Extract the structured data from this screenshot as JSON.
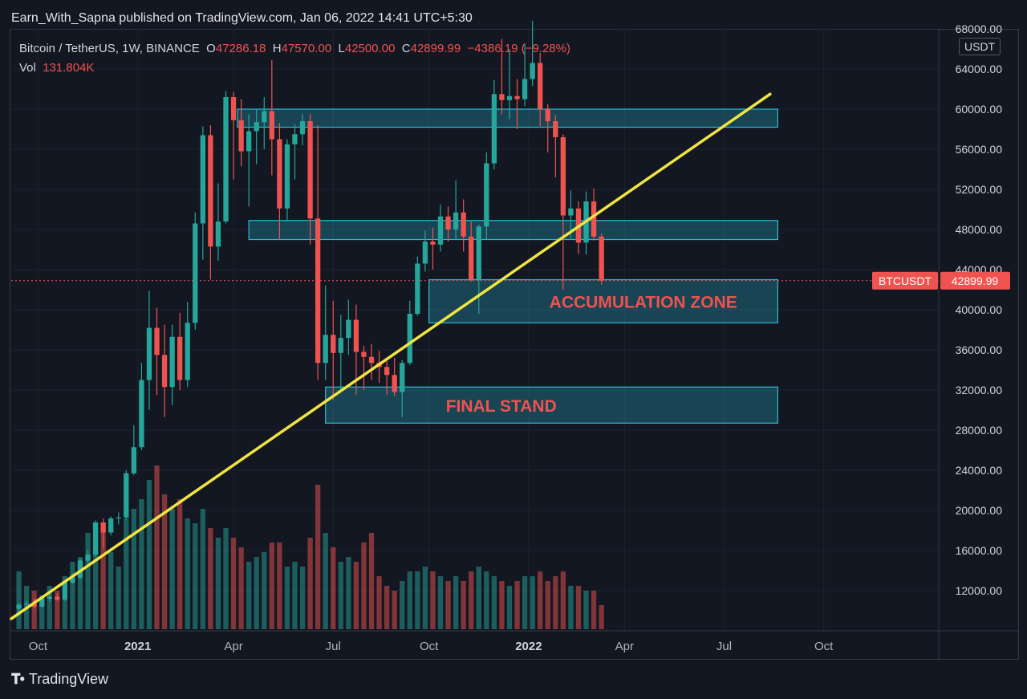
{
  "header": {
    "publish_line": "Earn_With_Sapna published on TradingView.com, Jan 06, 2022 14:41 UTC+5:30"
  },
  "legend": {
    "symbol": "Bitcoin / TetherUS, 1W, BINANCE",
    "o_label": "O",
    "o_value": "47286.18",
    "h_label": "H",
    "h_value": "47570.00",
    "l_label": "L",
    "l_value": "42500.00",
    "c_label": "C",
    "c_value": "42899.99",
    "change": "−4386.19 (−9.28%)",
    "vol_label": "Vol",
    "vol_value": "131.804K"
  },
  "currency_badge": "USDT",
  "price_tags": {
    "symbol": "BTCUSDT",
    "last": "42899.99"
  },
  "zones": [
    {
      "label": "",
      "low": 58200,
      "high": 60000,
      "from_week": 28.5,
      "to_week": 99
    },
    {
      "label": "",
      "low": 47000,
      "high": 48900,
      "from_week": 30,
      "to_week": 99
    },
    {
      "label": "ACCUMULATION ZONE",
      "low": 38700,
      "high": 43000,
      "from_week": 53.5,
      "to_week": 99
    },
    {
      "label": "FINAL STAND",
      "low": 28700,
      "high": 32300,
      "from_week": 40,
      "to_week": 99
    }
  ],
  "footer": {
    "brand": "TradingView"
  },
  "colors": {
    "up": "#26a69a",
    "down": "#ef5350",
    "zone": "#2bbcd4",
    "trend": "#f0e442",
    "bg": "#131722"
  },
  "chart_data": {
    "type": "candlestick",
    "interval": "1W",
    "y_axis": {
      "ticks": [
        12000,
        16000,
        20000,
        24000,
        28000,
        32000,
        36000,
        40000,
        44000,
        48000,
        52000,
        56000,
        60000,
        64000,
        68000
      ],
      "tick_labels": [
        "12000.00",
        "16000.00",
        "20000.00",
        "24000.00",
        "28000.00",
        "32000.00",
        "36000.00",
        "40000.00",
        "44000.00",
        "48000.00",
        "52000.00",
        "56000.00",
        "60000.00",
        "64000.00",
        "68000.00"
      ],
      "range": [
        8000,
        68000
      ]
    },
    "x_axis": {
      "ticks": [
        {
          "label": "Oct",
          "week": 2.5,
          "bold": false
        },
        {
          "label": "2021",
          "week": 15.5,
          "bold": true
        },
        {
          "label": "Apr",
          "week": 28,
          "bold": false
        },
        {
          "label": "Jul",
          "week": 41,
          "bold": false
        },
        {
          "label": "Oct",
          "week": 53.5,
          "bold": false
        },
        {
          "label": "2022",
          "week": 66.5,
          "bold": true
        },
        {
          "label": "Apr",
          "week": 79,
          "bold": false
        },
        {
          "label": "Jul",
          "week": 92,
          "bold": false
        },
        {
          "label": "Oct",
          "week": 105,
          "bold": false
        }
      ],
      "range": [
        -1,
        120
      ]
    },
    "trendline": {
      "from": {
        "week": -1,
        "price": 9200
      },
      "to": {
        "week": 98,
        "price": 61500
      }
    },
    "last_price": 42900,
    "candles": [
      {
        "o": 10200,
        "h": 10800,
        "l": 9800,
        "c": 10600,
        "v": 12
      },
      {
        "o": 10600,
        "h": 11000,
        "l": 10300,
        "c": 10700,
        "v": 9
      },
      {
        "o": 10700,
        "h": 11200,
        "l": 10200,
        "c": 10400,
        "v": 8
      },
      {
        "o": 10400,
        "h": 11400,
        "l": 10300,
        "c": 11200,
        "v": 7
      },
      {
        "o": 11200,
        "h": 11700,
        "l": 10900,
        "c": 11400,
        "v": 9
      },
      {
        "o": 11400,
        "h": 11700,
        "l": 11000,
        "c": 11100,
        "v": 8
      },
      {
        "o": 11100,
        "h": 13000,
        "l": 11000,
        "c": 12800,
        "v": 11
      },
      {
        "o": 12800,
        "h": 13700,
        "l": 12700,
        "c": 13300,
        "v": 14
      },
      {
        "o": 13300,
        "h": 15200,
        "l": 13100,
        "c": 15000,
        "v": 15
      },
      {
        "o": 15000,
        "h": 16000,
        "l": 14800,
        "c": 15600,
        "v": 20
      },
      {
        "o": 15600,
        "h": 19000,
        "l": 15400,
        "c": 18800,
        "v": 21
      },
      {
        "o": 18800,
        "h": 19200,
        "l": 16200,
        "c": 17800,
        "v": 22
      },
      {
        "o": 17800,
        "h": 19400,
        "l": 17500,
        "c": 19200,
        "v": 16
      },
      {
        "o": 19200,
        "h": 19800,
        "l": 18600,
        "c": 19300,
        "v": 13
      },
      {
        "o": 19300,
        "h": 24000,
        "l": 19100,
        "c": 23700,
        "v": 23
      },
      {
        "o": 23700,
        "h": 28500,
        "l": 23500,
        "c": 26300,
        "v": 25
      },
      {
        "o": 26300,
        "h": 34700,
        "l": 26000,
        "c": 33000,
        "v": 27
      },
      {
        "o": 33000,
        "h": 41900,
        "l": 30000,
        "c": 38200,
        "v": 31
      },
      {
        "o": 38200,
        "h": 40200,
        "l": 31500,
        "c": 35500,
        "v": 34
      },
      {
        "o": 35500,
        "h": 38500,
        "l": 29300,
        "c": 32300,
        "v": 28
      },
      {
        "o": 32300,
        "h": 38500,
        "l": 30500,
        "c": 37300,
        "v": 25
      },
      {
        "o": 37300,
        "h": 39700,
        "l": 32000,
        "c": 33000,
        "v": 27
      },
      {
        "o": 33000,
        "h": 40800,
        "l": 32300,
        "c": 38700,
        "v": 23
      },
      {
        "o": 38700,
        "h": 49700,
        "l": 38000,
        "c": 48600,
        "v": 22
      },
      {
        "o": 48600,
        "h": 58300,
        "l": 45000,
        "c": 57400,
        "v": 25
      },
      {
        "o": 57400,
        "h": 58400,
        "l": 43000,
        "c": 46300,
        "v": 21
      },
      {
        "o": 46300,
        "h": 52600,
        "l": 44900,
        "c": 48800,
        "v": 19
      },
      {
        "o": 48800,
        "h": 61800,
        "l": 48600,
        "c": 61200,
        "v": 21
      },
      {
        "o": 61200,
        "h": 61700,
        "l": 53000,
        "c": 58900,
        "v": 19
      },
      {
        "o": 58900,
        "h": 61000,
        "l": 54300,
        "c": 55800,
        "v": 17
      },
      {
        "o": 55800,
        "h": 59500,
        "l": 50300,
        "c": 57800,
        "v": 14
      },
      {
        "o": 57800,
        "h": 60000,
        "l": 54500,
        "c": 58700,
        "v": 15
      },
      {
        "o": 58700,
        "h": 61200,
        "l": 56000,
        "c": 59800,
        "v": 16
      },
      {
        "o": 59800,
        "h": 64900,
        "l": 53400,
        "c": 57000,
        "v": 18
      },
      {
        "o": 57000,
        "h": 58600,
        "l": 47000,
        "c": 50100,
        "v": 18
      },
      {
        "o": 50100,
        "h": 57000,
        "l": 48800,
        "c": 56500,
        "v": 13
      },
      {
        "o": 56500,
        "h": 58500,
        "l": 53000,
        "c": 57500,
        "v": 14
      },
      {
        "o": 57500,
        "h": 59500,
        "l": 56400,
        "c": 58800,
        "v": 13
      },
      {
        "o": 58800,
        "h": 59500,
        "l": 46500,
        "c": 49100,
        "v": 19
      },
      {
        "o": 49100,
        "h": 58400,
        "l": 33000,
        "c": 34700,
        "v": 30
      },
      {
        "o": 34700,
        "h": 42400,
        "l": 33000,
        "c": 37500,
        "v": 20
      },
      {
        "o": 37500,
        "h": 40900,
        "l": 31000,
        "c": 35700,
        "v": 17
      },
      {
        "o": 35700,
        "h": 39500,
        "l": 32000,
        "c": 37200,
        "v": 14
      },
      {
        "o": 37200,
        "h": 41000,
        "l": 35500,
        "c": 39000,
        "v": 15
      },
      {
        "o": 39000,
        "h": 40500,
        "l": 31500,
        "c": 35800,
        "v": 14
      },
      {
        "o": 35800,
        "h": 36400,
        "l": 32000,
        "c": 35300,
        "v": 18
      },
      {
        "o": 35300,
        "h": 36600,
        "l": 33000,
        "c": 34700,
        "v": 20
      },
      {
        "o": 34700,
        "h": 35900,
        "l": 32700,
        "c": 34300,
        "v": 11
      },
      {
        "o": 34300,
        "h": 34900,
        "l": 31500,
        "c": 33500,
        "v": 9
      },
      {
        "o": 33500,
        "h": 35200,
        "l": 31400,
        "c": 31800,
        "v": 8
      },
      {
        "o": 31800,
        "h": 35000,
        "l": 29300,
        "c": 34700,
        "v": 10
      },
      {
        "o": 34700,
        "h": 40900,
        "l": 34500,
        "c": 39600,
        "v": 12
      },
      {
        "o": 39600,
        "h": 45300,
        "l": 39400,
        "c": 44600,
        "v": 12
      },
      {
        "o": 44600,
        "h": 47900,
        "l": 43800,
        "c": 46800,
        "v": 13
      },
      {
        "o": 46800,
        "h": 48200,
        "l": 44000,
        "c": 46500,
        "v": 12
      },
      {
        "o": 46500,
        "h": 50500,
        "l": 45800,
        "c": 49300,
        "v": 11
      },
      {
        "o": 49300,
        "h": 50300,
        "l": 46800,
        "c": 48000,
        "v": 10
      },
      {
        "o": 48000,
        "h": 52900,
        "l": 47000,
        "c": 49700,
        "v": 11
      },
      {
        "o": 49700,
        "h": 51000,
        "l": 45800,
        "c": 47300,
        "v": 10
      },
      {
        "o": 47300,
        "h": 48800,
        "l": 42800,
        "c": 43000,
        "v": 12
      },
      {
        "o": 43000,
        "h": 48500,
        "l": 39600,
        "c": 48300,
        "v": 13
      },
      {
        "o": 48300,
        "h": 55700,
        "l": 47000,
        "c": 54600,
        "v": 12
      },
      {
        "o": 54600,
        "h": 62900,
        "l": 54000,
        "c": 61500,
        "v": 11
      },
      {
        "o": 61500,
        "h": 67000,
        "l": 59500,
        "c": 60900,
        "v": 10
      },
      {
        "o": 60900,
        "h": 66000,
        "l": 59000,
        "c": 61300,
        "v": 9
      },
      {
        "o": 61300,
        "h": 63000,
        "l": 58000,
        "c": 61000,
        "v": 10
      },
      {
        "o": 61000,
        "h": 66500,
        "l": 60300,
        "c": 63000,
        "v": 11
      },
      {
        "o": 63000,
        "h": 68800,
        "l": 62300,
        "c": 64600,
        "v": 11
      },
      {
        "o": 64600,
        "h": 65600,
        "l": 58300,
        "c": 60000,
        "v": 12
      },
      {
        "o": 60000,
        "h": 60500,
        "l": 55700,
        "c": 58800,
        "v": 10
      },
      {
        "o": 58800,
        "h": 59400,
        "l": 53200,
        "c": 57200,
        "v": 11
      },
      {
        "o": 57200,
        "h": 57500,
        "l": 42000,
        "c": 49400,
        "v": 12
      },
      {
        "o": 49400,
        "h": 51900,
        "l": 47100,
        "c": 50100,
        "v": 9
      },
      {
        "o": 50100,
        "h": 50800,
        "l": 45600,
        "c": 46700,
        "v": 9
      },
      {
        "o": 46700,
        "h": 51800,
        "l": 45500,
        "c": 50800,
        "v": 8
      },
      {
        "o": 50800,
        "h": 52100,
        "l": 46900,
        "c": 47300,
        "v": 8
      },
      {
        "o": 47300,
        "h": 47600,
        "l": 42500,
        "c": 42900,
        "v": 5
      }
    ]
  }
}
